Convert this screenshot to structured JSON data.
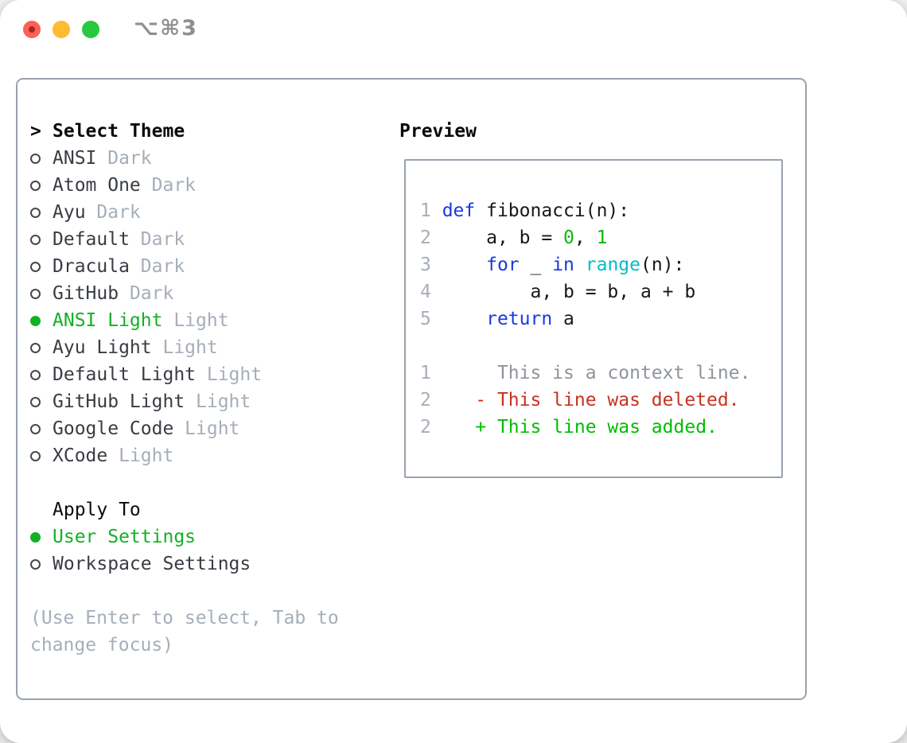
{
  "window": {
    "title": "⌥⌘3",
    "traffic_lights": [
      "close",
      "minimize",
      "zoom"
    ]
  },
  "theme_selector": {
    "cursor": ">",
    "title": "Select Theme",
    "items": [
      {
        "name": "ANSI",
        "variant": "Dark",
        "selected": false
      },
      {
        "name": "Atom One",
        "variant": "Dark",
        "selected": false
      },
      {
        "name": "Ayu",
        "variant": "Dark",
        "selected": false
      },
      {
        "name": "Default",
        "variant": "Dark",
        "selected": false
      },
      {
        "name": "Dracula",
        "variant": "Dark",
        "selected": false
      },
      {
        "name": "GitHub",
        "variant": "Dark",
        "selected": false
      },
      {
        "name": "ANSI Light",
        "variant": "Light",
        "selected": true
      },
      {
        "name": "Ayu Light",
        "variant": "Light",
        "selected": false
      },
      {
        "name": "Default Light",
        "variant": "Light",
        "selected": false
      },
      {
        "name": "GitHub Light",
        "variant": "Light",
        "selected": false
      },
      {
        "name": "Google Code",
        "variant": "Light",
        "selected": false
      },
      {
        "name": "XCode",
        "variant": "Light",
        "selected": false
      }
    ]
  },
  "apply_to": {
    "title": "Apply To",
    "options": [
      {
        "name": "User Settings",
        "selected": true
      },
      {
        "name": "Workspace Settings",
        "selected": false
      }
    ]
  },
  "help_text": [
    "(Use Enter to select, Tab to",
    "change focus)"
  ],
  "preview": {
    "title": "Preview",
    "lines": [
      {
        "num": "1",
        "tokens": [
          {
            "c": "kw",
            "t": "def"
          },
          {
            "c": "plain",
            "t": " fibonacci(n):"
          }
        ]
      },
      {
        "num": "2",
        "tokens": [
          {
            "c": "plain",
            "t": "    a, b = "
          },
          {
            "c": "num",
            "t": "0"
          },
          {
            "c": "plain",
            "t": ", "
          },
          {
            "c": "num",
            "t": "1"
          }
        ]
      },
      {
        "num": "3",
        "tokens": [
          {
            "c": "plain",
            "t": "    "
          },
          {
            "c": "kw",
            "t": "for"
          },
          {
            "c": "plain",
            "t": " _ "
          },
          {
            "c": "kw",
            "t": "in"
          },
          {
            "c": "plain",
            "t": " "
          },
          {
            "c": "fn",
            "t": "range"
          },
          {
            "c": "plain",
            "t": "(n):"
          }
        ]
      },
      {
        "num": "4",
        "tokens": [
          {
            "c": "plain",
            "t": "        a, b = b, a + b"
          }
        ]
      },
      {
        "num": "5",
        "tokens": [
          {
            "c": "plain",
            "t": "    "
          },
          {
            "c": "kw",
            "t": "return"
          },
          {
            "c": "plain",
            "t": " a"
          }
        ]
      },
      {
        "num": "",
        "tokens": []
      },
      {
        "num": "1",
        "tokens": [
          {
            "c": "ctx",
            "t": "     This is a context line."
          }
        ]
      },
      {
        "num": "2",
        "tokens": [
          {
            "c": "del",
            "t": "   - This line was deleted."
          }
        ]
      },
      {
        "num": "2",
        "tokens": [
          {
            "c": "add",
            "t": "   + This line was added."
          }
        ]
      }
    ]
  },
  "colors": {
    "tl-red": "#fe5f57",
    "tl-yellow": "#febc2e",
    "tl-green": "#29c840",
    "title-gray": "#8f8f8f",
    "panel-border": "#99a2ad",
    "heading": "#0b0b0d",
    "item": "#383c43",
    "circle": "#44484f",
    "muted": "#a6aeb9",
    "green": "#12b124",
    "code": "#17181a",
    "kw": "#1739e0",
    "fn-cyan": "#00bdc6",
    "num-green": "#0db80d",
    "ctx-gray": "#8e949c",
    "del-red": "#c7321f",
    "add-green": "#00bd00"
  }
}
